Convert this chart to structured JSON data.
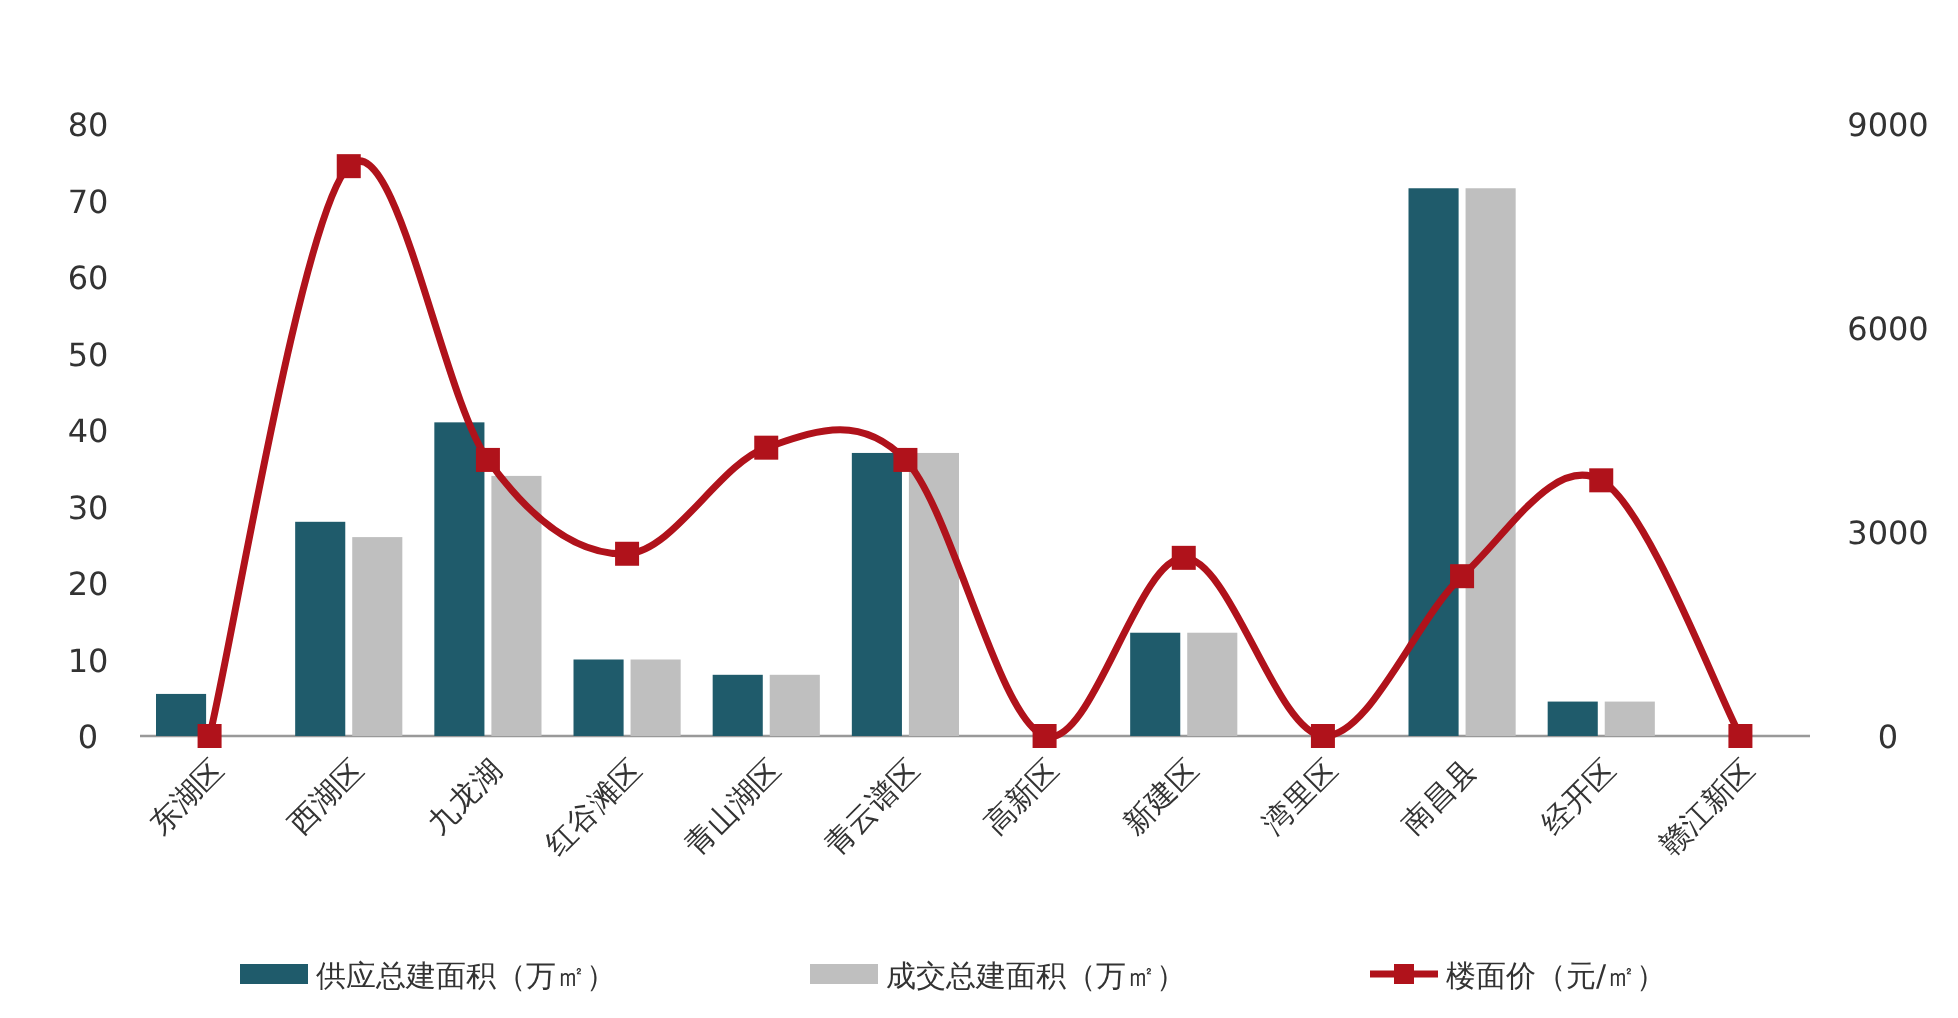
{
  "chart_data": {
    "type": "bar",
    "categories": [
      "东湖区",
      "西湖区",
      "九龙湖",
      "红谷滩区",
      "青山湖区",
      "青云谱区",
      "高新区",
      "新建区",
      "湾里区",
      "南昌县",
      "经开区",
      "赣江新区"
    ],
    "series": [
      {
        "name": "供应总建面积（万㎡）",
        "color": "#1f5b6b",
        "values": [
          5.5,
          28,
          41,
          10,
          8,
          37,
          0,
          13.5,
          0,
          71.6,
          4.5,
          0
        ]
      },
      {
        "name": "成交总建面积（万㎡）",
        "color": "#bfbfbf",
        "values": [
          0,
          26,
          34,
          10,
          8,
          37,
          0,
          13.5,
          0,
          71.6,
          4.5,
          0
        ]
      },
      {
        "name": "楼面价（元/㎡）",
        "type": "line",
        "axis": "y2",
        "color": "#b0121b",
        "marker": "square",
        "values": [
          0,
          8380,
          4060,
          2680,
          4240,
          4060,
          0,
          2620,
          0,
          2350,
          3760,
          0
        ]
      }
    ],
    "ylim": [
      0,
      80
    ],
    "yticks": [
      0,
      10,
      20,
      30,
      40,
      50,
      60,
      70,
      80
    ],
    "y2lim": [
      0,
      9000
    ],
    "y2ticks": [
      0,
      3000,
      6000,
      9000
    ],
    "legend": "bottom"
  }
}
